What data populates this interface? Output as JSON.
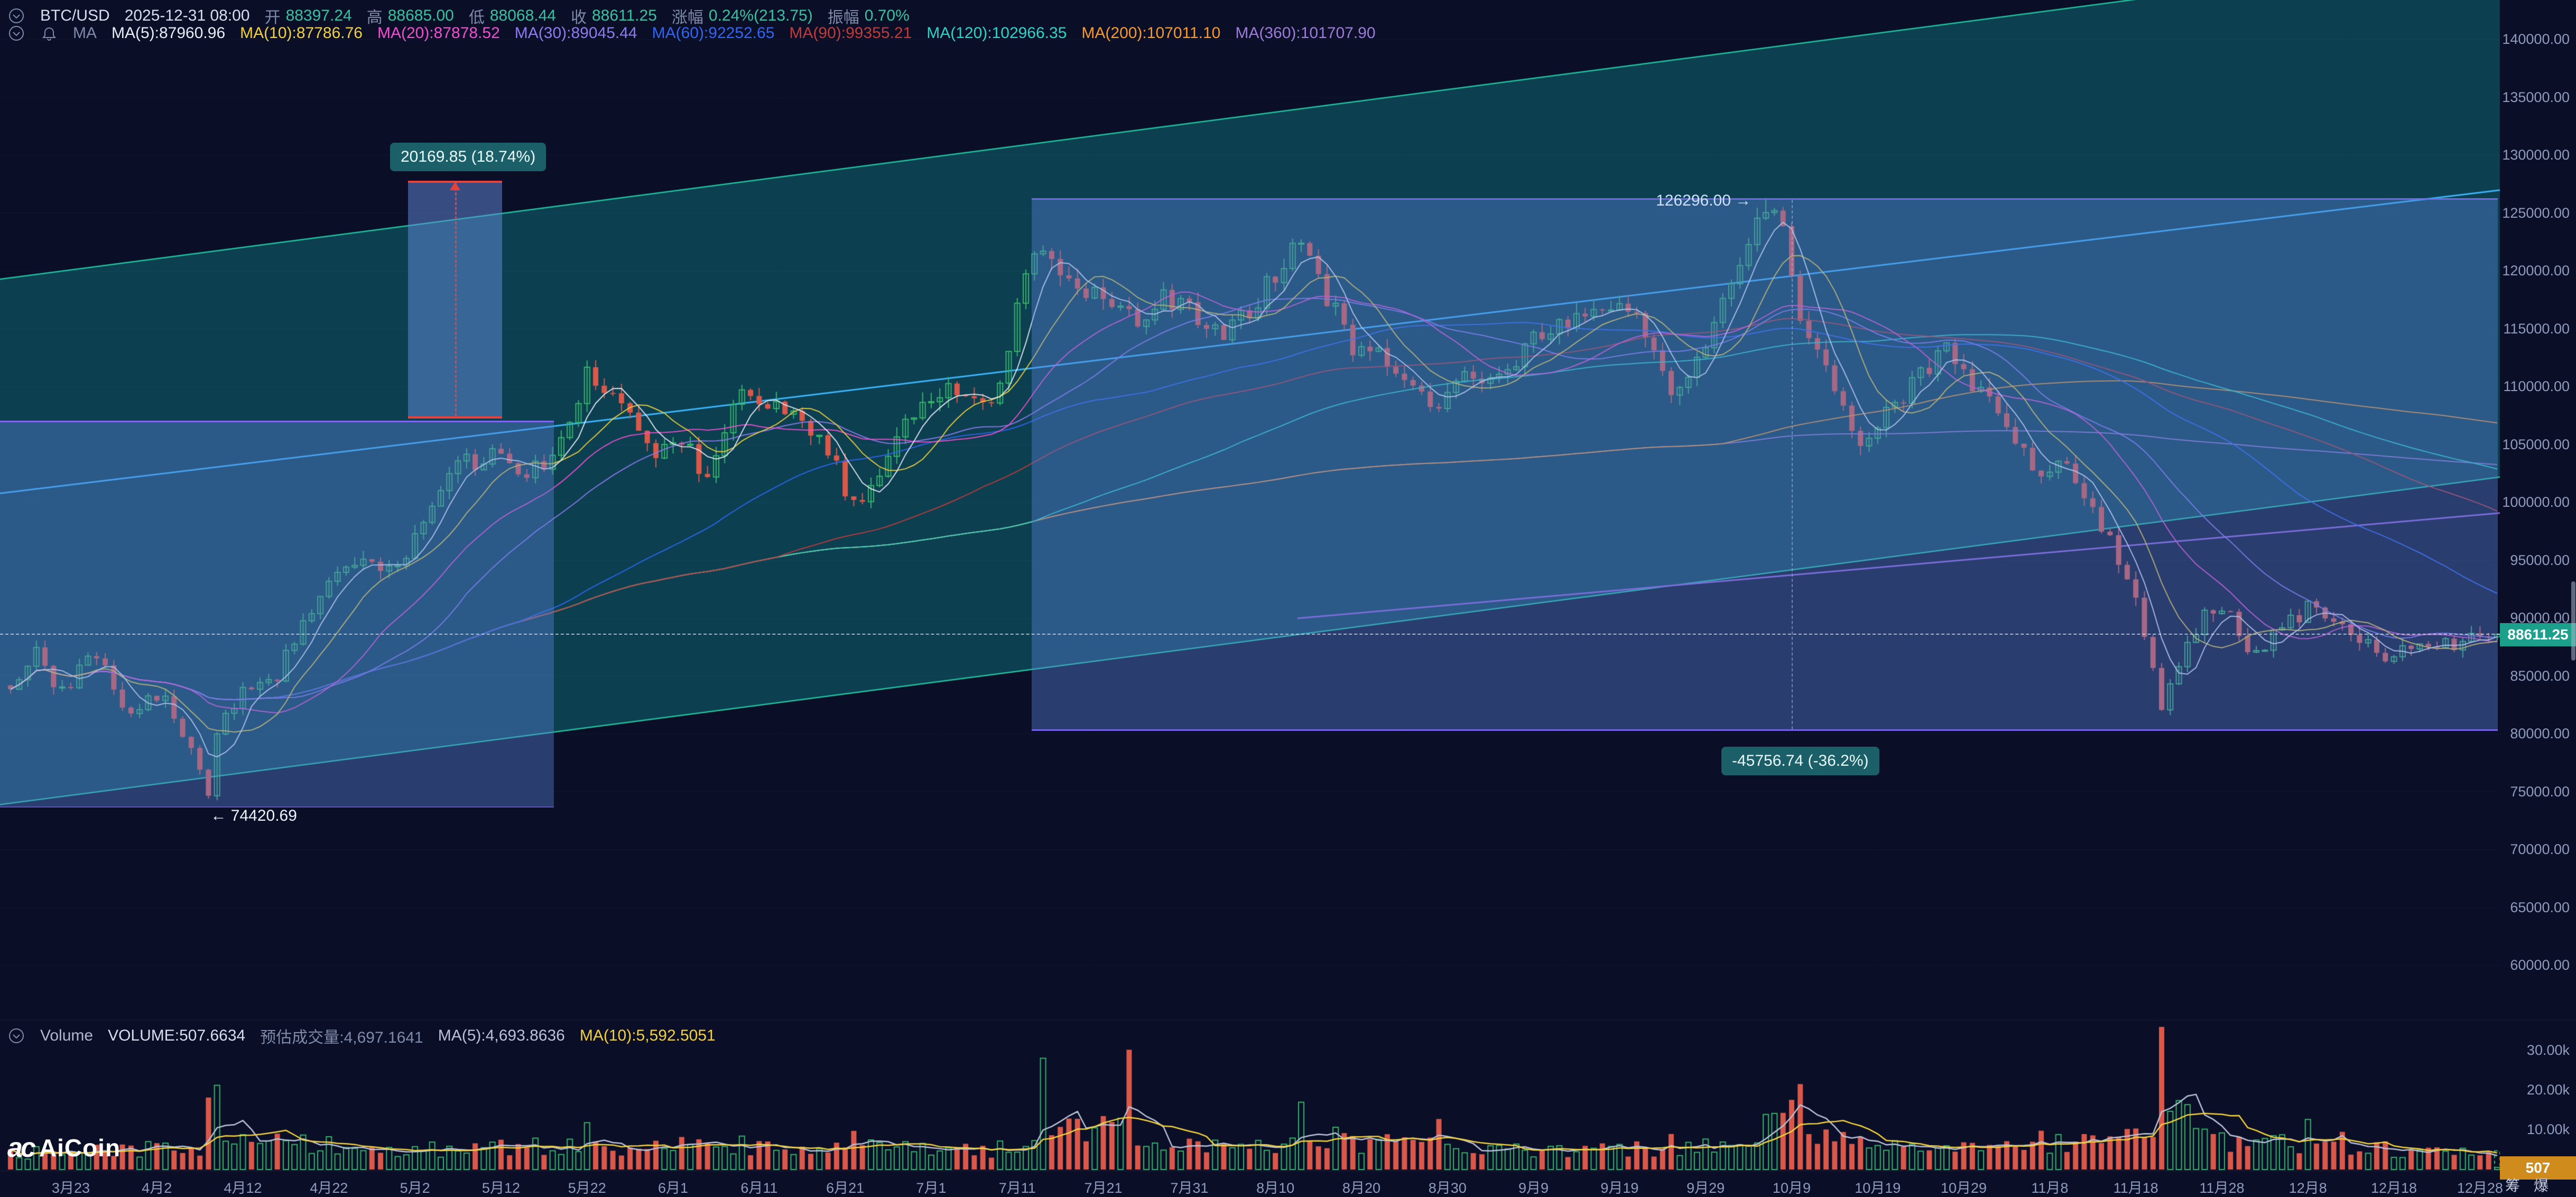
{
  "header": {
    "symbol": "BTC/USD",
    "datetime": "2025-12-31 08:00",
    "open_label": "开",
    "open": "88397.24",
    "high_label": "高",
    "high": "88685.00",
    "low_label": "低",
    "low": "88068.44",
    "close_label": "收",
    "close": "88611.25",
    "change_label": "涨幅",
    "change": "0.24%(213.75)",
    "amplitude_label": "振幅",
    "amplitude": "0.70%"
  },
  "ma_legend": {
    "title": "MA",
    "items": [
      {
        "label": "MA(5):87960.96",
        "color": "#e8ecf5"
      },
      {
        "label": "MA(10):87786.76",
        "color": "#f3d13c"
      },
      {
        "label": "MA(20):87878.52",
        "color": "#f24fd0"
      },
      {
        "label": "MA(30):89045.44",
        "color": "#8f7bf0"
      },
      {
        "label": "MA(60):92252.65",
        "color": "#3166f2"
      },
      {
        "label": "MA(90):99355.21",
        "color": "#c23b3b"
      },
      {
        "label": "MA(120):102966.35",
        "color": "#2bd4c4"
      },
      {
        "label": "MA(200):107011.10",
        "color": "#f59a2b"
      },
      {
        "label": "MA(360):101707.90",
        "color": "#9d7bd8"
      }
    ]
  },
  "volume_header": {
    "title": "Volume",
    "volume": "VOLUME:507.6634",
    "estimated": "预估成交量:4,697.1641",
    "ma5": "MA(5):4,693.8636",
    "ma10": "MA(10):5,592.5051"
  },
  "axes": {
    "price_labels": [
      "140000.00",
      "135000.00",
      "130000.00",
      "125000.00",
      "120000.00",
      "115000.00",
      "110000.00",
      "105000.00",
      "100000.00",
      "95000.00",
      "90000.00",
      "85000.00",
      "80000.00",
      "75000.00",
      "70000.00",
      "65000.00",
      "60000.00"
    ],
    "volume_labels": [
      "30.00k",
      "20.00k",
      "10.00k"
    ],
    "date_labels": [
      "3月23",
      "4月2",
      "4月12",
      "4月22",
      "5月2",
      "5月12",
      "5月22",
      "6月1",
      "6月11",
      "6月21",
      "7月1",
      "7月11",
      "7月21",
      "7月31",
      "8月10",
      "8月20",
      "8月30",
      "9月9",
      "9月19",
      "9月29",
      "10月9",
      "10月19",
      "10月29",
      "11月8",
      "11月18",
      "11月28",
      "12月8",
      "12月18",
      "12月28"
    ]
  },
  "badges": {
    "price": "88611.25",
    "volume": "507"
  },
  "annotations": {
    "range_up": {
      "text": "20169.85 (18.74%)"
    },
    "range_down": {
      "text": "-45756.74 (-36.2%)"
    },
    "high_marker": {
      "text": "126296.00 →"
    },
    "low_marker": {
      "text": "← 74420.69"
    }
  },
  "watermark": "AiCoin",
  "corner_buttons": [
    {
      "label": "筹"
    },
    {
      "label": "爆"
    }
  ],
  "chart_data": {
    "type": "candlestick",
    "symbol": "BTC/USD",
    "interval": "daily",
    "ylim": [
      60000,
      140000
    ],
    "volume_ylim": [
      0,
      35000
    ],
    "current_price": 88611.25,
    "days_total": 290,
    "first_tick_day": 7,
    "tick_every_days": 10,
    "price_anchors": [
      [
        0,
        84200
      ],
      [
        3,
        86800
      ],
      [
        6,
        83500
      ],
      [
        10,
        87200
      ],
      [
        13,
        82000
      ],
      [
        18,
        83500
      ],
      [
        21,
        78200
      ],
      [
        23,
        74900
      ],
      [
        24,
        80500
      ],
      [
        27,
        83600
      ],
      [
        31,
        85200
      ],
      [
        37,
        93400
      ],
      [
        40,
        94700
      ],
      [
        44,
        93800
      ],
      [
        47,
        96900
      ],
      [
        52,
        103200
      ],
      [
        57,
        104100
      ],
      [
        60,
        102500
      ],
      [
        63,
        103400
      ],
      [
        67,
        111200
      ],
      [
        70,
        109000
      ],
      [
        75,
        104300
      ],
      [
        78,
        105600
      ],
      [
        81,
        101600
      ],
      [
        85,
        110200
      ],
      [
        88,
        108600
      ],
      [
        92,
        106900
      ],
      [
        95,
        104600
      ],
      [
        98,
        99600
      ],
      [
        101,
        103000
      ],
      [
        104,
        107300
      ],
      [
        109,
        110000
      ],
      [
        113,
        108200
      ],
      [
        115,
        110300
      ],
      [
        117,
        117500
      ],
      [
        120,
        122400
      ],
      [
        122,
        119800
      ],
      [
        124,
        118700
      ],
      [
        127,
        117200
      ],
      [
        131,
        115600
      ],
      [
        134,
        118100
      ],
      [
        137,
        116400
      ],
      [
        141,
        114300
      ],
      [
        145,
        117400
      ],
      [
        150,
        123300
      ],
      [
        153,
        117800
      ],
      [
        156,
        113400
      ],
      [
        159,
        112600
      ],
      [
        162,
        110100
      ],
      [
        166,
        108400
      ],
      [
        169,
        111500
      ],
      [
        172,
        110600
      ],
      [
        176,
        113300
      ],
      [
        180,
        115900
      ],
      [
        183,
        115400
      ],
      [
        186,
        117100
      ],
      [
        189,
        115800
      ],
      [
        193,
        109300
      ],
      [
        196,
        112500
      ],
      [
        199,
        117200
      ],
      [
        202,
        122600
      ],
      [
        204,
        125000
      ],
      [
        206,
        124500
      ],
      [
        208,
        115000
      ],
      [
        211,
        111500
      ],
      [
        215,
        105200
      ],
      [
        219,
        108300
      ],
      [
        222,
        110900
      ],
      [
        225,
        114000
      ],
      [
        228,
        110200
      ],
      [
        232,
        106800
      ],
      [
        236,
        101900
      ],
      [
        239,
        103800
      ],
      [
        242,
        99300
      ],
      [
        246,
        93600
      ],
      [
        249,
        86000
      ],
      [
        250,
        82600
      ],
      [
        253,
        87800
      ],
      [
        255,
        90400
      ],
      [
        257,
        91000
      ],
      [
        261,
        86700
      ],
      [
        264,
        89200
      ],
      [
        267,
        90800
      ],
      [
        271,
        89900
      ],
      [
        274,
        87600
      ],
      [
        276,
        86300
      ],
      [
        279,
        87800
      ],
      [
        281,
        87200
      ],
      [
        285,
        88000
      ],
      [
        289,
        88611.25
      ]
    ],
    "volume_anchors": [
      [
        0,
        5000
      ],
      [
        10,
        6000
      ],
      [
        23,
        18500
      ],
      [
        24,
        21000
      ],
      [
        27,
        9000
      ],
      [
        37,
        8000
      ],
      [
        47,
        6000
      ],
      [
        57,
        7000
      ],
      [
        67,
        12500
      ],
      [
        75,
        7000
      ],
      [
        85,
        8000
      ],
      [
        92,
        6000
      ],
      [
        98,
        9500
      ],
      [
        104,
        6500
      ],
      [
        109,
        5500
      ],
      [
        115,
        7000
      ],
      [
        120,
        26000
      ],
      [
        124,
        12000
      ],
      [
        130,
        27500
      ],
      [
        137,
        8000
      ],
      [
        145,
        7500
      ],
      [
        150,
        15500
      ],
      [
        156,
        9000
      ],
      [
        162,
        8000
      ],
      [
        166,
        12000
      ],
      [
        172,
        6500
      ],
      [
        180,
        5500
      ],
      [
        186,
        6000
      ],
      [
        193,
        8500
      ],
      [
        199,
        7000
      ],
      [
        204,
        14000
      ],
      [
        207,
        16000
      ],
      [
        208,
        22500
      ],
      [
        215,
        9000
      ],
      [
        219,
        7500
      ],
      [
        225,
        6000
      ],
      [
        232,
        7500
      ],
      [
        236,
        9000
      ],
      [
        242,
        8000
      ],
      [
        246,
        10000
      ],
      [
        250,
        33000
      ],
      [
        253,
        18000
      ],
      [
        257,
        9000
      ],
      [
        261,
        8000
      ],
      [
        267,
        12500
      ],
      [
        271,
        9500
      ],
      [
        276,
        6500
      ],
      [
        281,
        5500
      ],
      [
        285,
        5000
      ],
      [
        288,
        4500
      ],
      [
        289,
        507.66
      ]
    ],
    "specials": {
      "low_day": 23,
      "low_price": 74420.69,
      "high_day": 204,
      "high_price": 126296.0,
      "last_candle": {
        "open": 88397.24,
        "high": 88685.0,
        "low": 88068.44,
        "close": 88611.25
      },
      "last_volume": 507.6634,
      "estimated_volume": 4697.1641
    },
    "ma_periods": [
      360,
      200,
      120,
      90,
      60,
      30,
      20,
      10,
      5
    ],
    "ma_colors": {
      "5": "#e8ecf5",
      "10": "#f3d13c",
      "20": "#f24fd0",
      "30": "#8f7bf0",
      "60": "#3166f2",
      "90": "#c23b3b",
      "120": "#2bd4c4",
      "200": "#f59a2b",
      "360": "#9d7bd8"
    },
    "volume_ma_colors": {
      "ma5": "#b9c2d8",
      "ma10": "#f3d13c"
    },
    "candle_colors": {
      "up": "#35b36a",
      "down": "#d9584a"
    },
    "channel": {
      "x1": 0,
      "x2": 4730,
      "top_p1": 119300,
      "top_p2": 147600,
      "bottom_p1": 73900,
      "bottom_p2": 102200,
      "fill": "rgba(14,105,117,0.55)",
      "line": "#1fc39f"
    },
    "trendlines": [
      {
        "x1": 0,
        "p1": 100800,
        "x2": 4730,
        "p2": 127000,
        "color": "#3bb3f7"
      },
      {
        "x1": 2455,
        "p1": 90000,
        "x2": 4730,
        "p2": 99100,
        "color": "#8f5fd6"
      }
    ],
    "rects": [
      {
        "name": "rect-left",
        "x1": 0,
        "x2": 1048,
        "p1": 107100,
        "p2": 73900
      },
      {
        "name": "rect-right",
        "x1": 1952,
        "x2": 4726,
        "p1": 126296,
        "p2": 80539.26
      },
      {
        "name": "rect-measure",
        "x1": 772,
        "x2": 950,
        "p1": 127795,
        "p2": 107625
      }
    ],
    "measure_line_x": 3390
  }
}
